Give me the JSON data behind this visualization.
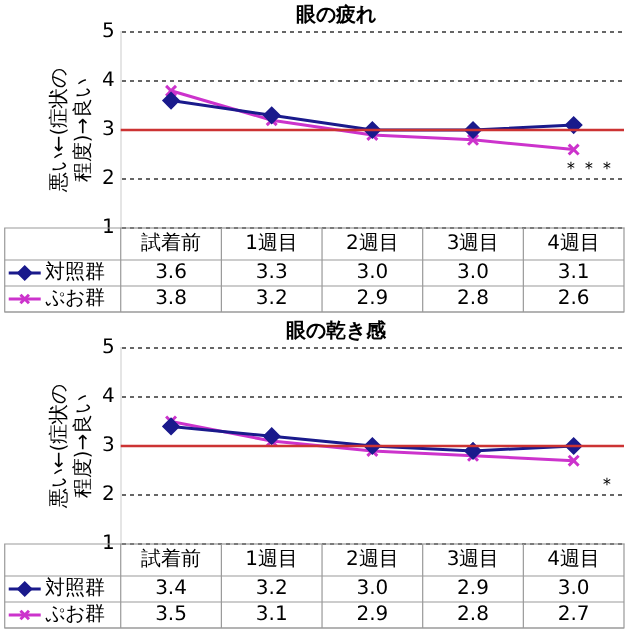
{
  "chart_data": [
    {
      "type": "line",
      "title": "眼の疲れ",
      "ylabel": "悪い←(症状の程度)→良い",
      "categories": [
        "試着前",
        "1週目",
        "2週目",
        "3週目",
        "4週目"
      ],
      "series": [
        {
          "name": "対照群",
          "color": "#1a1a8c",
          "marker": "diamond",
          "values": [
            3.6,
            3.3,
            3.0,
            3.0,
            3.1
          ],
          "value_labels": [
            "3.6",
            "3.3",
            "3.0",
            "3.0",
            "3.1"
          ]
        },
        {
          "name": "ぷお群",
          "color": "#cc33cc",
          "marker": "cross",
          "values": [
            3.8,
            3.2,
            2.9,
            2.8,
            2.6
          ],
          "value_labels": [
            "3.8",
            "3.2",
            "2.9",
            "2.8",
            "2.6"
          ]
        }
      ],
      "ylim": [
        1,
        5
      ],
      "yticks": [
        1,
        2,
        3,
        4,
        5
      ],
      "grid": "y",
      "legend": "bottom left",
      "ref_lines": [
        {
          "axis": "y",
          "value": 3,
          "color": "#cc3333"
        }
      ],
      "annotations": [
        "＊＊＊"
      ]
    },
    {
      "type": "line",
      "title": "眼の乾き感",
      "ylabel": "悪い←(症状の程度)→良い",
      "categories": [
        "試着前",
        "1週目",
        "2週目",
        "3週目",
        "4週目"
      ],
      "series": [
        {
          "name": "対照群",
          "color": "#1a1a8c",
          "marker": "diamond",
          "values": [
            3.4,
            3.2,
            3.0,
            2.9,
            3.0
          ],
          "value_labels": [
            "3.4",
            "3.2",
            "3.0",
            "2.9",
            "3.0"
          ]
        },
        {
          "name": "ぷお群",
          "color": "#cc33cc",
          "marker": "cross",
          "values": [
            3.5,
            3.1,
            2.9,
            2.8,
            2.7
          ],
          "value_labels": [
            "3.5",
            "3.1",
            "2.9",
            "2.8",
            "2.7"
          ]
        }
      ],
      "ylim": [
        1,
        5
      ],
      "yticks": [
        1,
        2,
        3,
        4,
        5
      ],
      "grid": "y",
      "legend": "bottom left",
      "ref_lines": [
        {
          "axis": "y",
          "value": 3,
          "color": "#cc3333"
        }
      ],
      "annotations": [
        "＊"
      ]
    }
  ]
}
